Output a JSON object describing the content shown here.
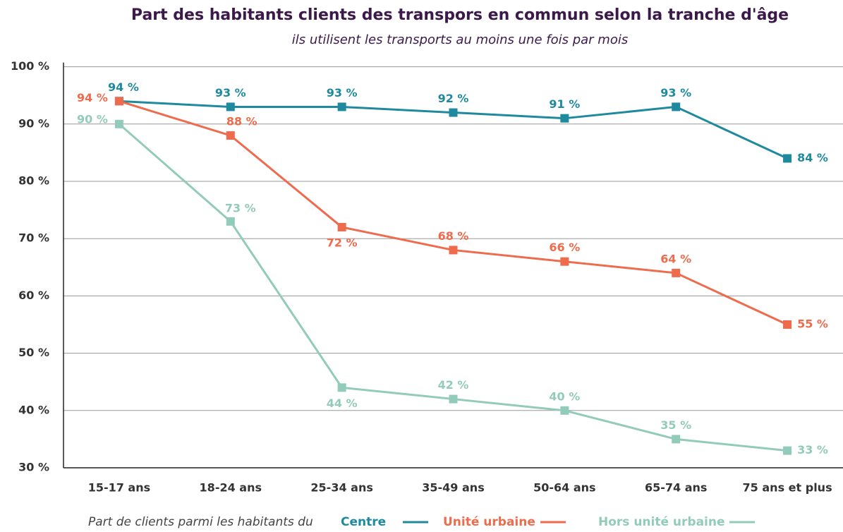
{
  "chart_data": {
    "type": "line",
    "title": "Part des habitants clients des transpors en commun selon la tranche d'âge",
    "subtitle": "ils utilisent les transports au moins une fois par mois",
    "legend_title": "Part de clients parmi les habitants du",
    "categories": [
      "15-17 ans",
      "18-24 ans",
      "25-34 ans",
      "35-49 ans",
      "50-64 ans",
      "65-74 ans",
      "75 ans et plus"
    ],
    "ylim": [
      30,
      100
    ],
    "yticks": [
      {
        "value": 30,
        "label": "30 %"
      },
      {
        "value": 40,
        "label": "40 %"
      },
      {
        "value": 50,
        "label": "50 %"
      },
      {
        "value": 60,
        "label": "60 %"
      },
      {
        "value": 70,
        "label": "70 %"
      },
      {
        "value": 80,
        "label": "80 %"
      },
      {
        "value": 90,
        "label": "90 %"
      },
      {
        "value": 100,
        "label": "100 %"
      }
    ],
    "grid": true,
    "legend": "bottom",
    "series": [
      {
        "name": "Centre",
        "color": "#1f8a9e",
        "values": [
          94,
          93,
          93,
          92,
          91,
          93,
          84
        ],
        "value_labels": [
          "94 %",
          "93 %",
          "93 %",
          "92 %",
          "91 %",
          "93 %",
          "84 %"
        ]
      },
      {
        "name": "Unité urbaine",
        "color": "#ee6b4d",
        "values": [
          94,
          88,
          72,
          68,
          66,
          64,
          55
        ],
        "value_labels": [
          "94 %",
          "88 %",
          "72 %",
          "68 %",
          "66 %",
          "64 %",
          "55 %"
        ]
      },
      {
        "name": "Hors unité urbaine",
        "color": "#93cbbb",
        "values": [
          90,
          73,
          44,
          42,
          40,
          35,
          33
        ],
        "value_labels": [
          "90 %",
          "73 %",
          "44 %",
          "42 %",
          "40 %",
          "35 %",
          "33 %"
        ]
      }
    ]
  }
}
